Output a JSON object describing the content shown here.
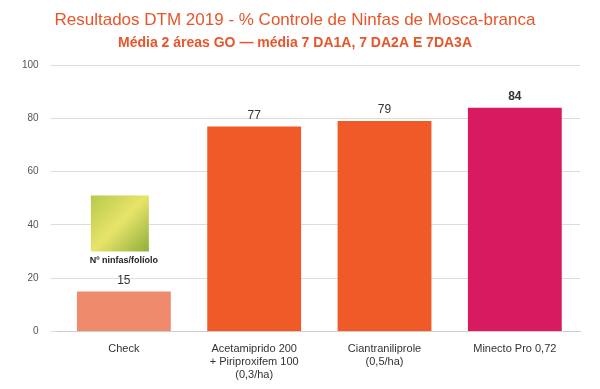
{
  "chart_data": {
    "type": "bar",
    "title": "Resultados DTM 2019 - % Controle de Ninfas de Mosca-branca",
    "subtitle": "Média 2 áreas GO — média 7 DA1A, 7 DA2A E 7DA3A",
    "annotation": "Nº ninfas/folíolo",
    "categories": [
      "Check",
      [
        "Acetamiprido 200",
        "+ Piriproxifem 100",
        "(0,3/ha)"
      ],
      [
        "Ciantraniliprole",
        "(0,5/ha)"
      ],
      "Minecto Pro 0,72"
    ],
    "values": [
      15,
      77,
      79,
      84
    ],
    "colors": [
      "#f08a6c",
      "#f05a28",
      "#f05a28",
      "#d81b60"
    ],
    "ylim": [
      0,
      100
    ],
    "yticks": [
      0,
      20,
      40,
      60,
      80,
      100
    ],
    "grid": true,
    "data_labels": true
  }
}
